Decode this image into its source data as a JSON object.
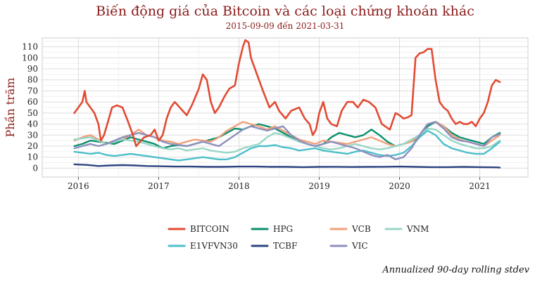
{
  "chart_data": {
    "type": "line",
    "title": "Biến động giá của Bitcoin và các loại chứng khoán khác",
    "subtitle": "2015-09-09 đến 2021-03-31",
    "ylabel": "Phần trăm",
    "caption": "Annualized 90-day rolling stdev",
    "ylim": [
      -8,
      118
    ],
    "yticks": [
      0,
      10,
      20,
      30,
      40,
      50,
      60,
      70,
      80,
      90,
      100,
      110
    ],
    "xlim": [
      2015.55,
      2021.6
    ],
    "xticks": [
      {
        "value": 2016,
        "label": "2016"
      },
      {
        "value": 2017,
        "label": "2017"
      },
      {
        "value": 2018,
        "label": "2018"
      },
      {
        "value": 2019,
        "label": "2019"
      },
      {
        "value": 2020,
        "label": "2020"
      },
      {
        "value": 2021,
        "label": "2021"
      }
    ],
    "grid": true,
    "legend_position": "bottom",
    "series": [
      {
        "name": "BITCOIN",
        "color": "#e24a33",
        "x": [
          2015.95,
          2016.0,
          2016.05,
          2016.08,
          2016.1,
          2016.15,
          2016.2,
          2016.25,
          2016.28,
          2016.32,
          2016.38,
          2016.42,
          2016.48,
          2016.55,
          2016.62,
          2016.68,
          2016.72,
          2016.78,
          2016.82,
          2016.9,
          2016.95,
          2017.0,
          2017.05,
          2017.1,
          2017.15,
          2017.2,
          2017.3,
          2017.35,
          2017.42,
          2017.5,
          2017.55,
          2017.6,
          2017.65,
          2017.7,
          2017.75,
          2017.82,
          2017.88,
          2017.95,
          2018.0,
          2018.05,
          2018.08,
          2018.12,
          2018.15,
          2018.2,
          2018.25,
          2018.3,
          2018.38,
          2018.45,
          2018.5,
          2018.58,
          2018.65,
          2018.75,
          2018.82,
          2018.88,
          2018.92,
          2018.96,
          2019.0,
          2019.05,
          2019.1,
          2019.15,
          2019.22,
          2019.28,
          2019.35,
          2019.42,
          2019.48,
          2019.55,
          2019.62,
          2019.7,
          2019.78,
          2019.82,
          2019.88,
          2019.95,
          2020.0,
          2020.05,
          2020.1,
          2020.15,
          2020.2,
          2020.25,
          2020.3,
          2020.35,
          2020.4,
          2020.45,
          2020.5,
          2020.55,
          2020.6,
          2020.65,
          2020.7,
          2020.75,
          2020.8,
          2020.85,
          2020.9,
          2020.95,
          2021.0,
          2021.05,
          2021.1,
          2021.15,
          2021.2,
          2021.25
        ],
        "y": [
          50,
          55,
          60,
          70,
          60,
          55,
          50,
          40,
          25,
          30,
          45,
          55,
          57,
          55,
          42,
          30,
          20,
          25,
          28,
          30,
          35,
          25,
          30,
          45,
          55,
          60,
          52,
          48,
          58,
          72,
          85,
          80,
          60,
          50,
          55,
          65,
          72,
          75,
          95,
          110,
          116,
          114,
          100,
          90,
          80,
          70,
          55,
          60,
          52,
          45,
          52,
          55,
          45,
          40,
          30,
          35,
          50,
          60,
          45,
          40,
          38,
          52,
          60,
          60,
          55,
          62,
          60,
          55,
          40,
          38,
          35,
          50,
          48,
          45,
          46,
          48,
          100,
          104,
          105,
          108,
          108,
          80,
          60,
          55,
          52,
          45,
          40,
          42,
          40,
          40,
          42,
          38,
          45,
          50,
          60,
          75,
          80,
          78
        ]
      },
      {
        "name": "HPG",
        "color": "#0b8f6e",
        "x": [
          2015.95,
          2016.05,
          2016.15,
          2016.25,
          2016.35,
          2016.45,
          2016.55,
          2016.65,
          2016.75,
          2016.85,
          2016.95,
          2017.05,
          2017.15,
          2017.25,
          2017.35,
          2017.45,
          2017.55,
          2017.65,
          2017.75,
          2017.85,
          2017.95,
          2018.05,
          2018.15,
          2018.25,
          2018.35,
          2018.45,
          2018.55,
          2018.65,
          2018.75,
          2018.85,
          2018.95,
          2019.05,
          2019.15,
          2019.25,
          2019.35,
          2019.45,
          2019.55,
          2019.65,
          2019.75,
          2019.85,
          2019.95,
          2020.05,
          2020.15,
          2020.25,
          2020.35,
          2020.45,
          2020.55,
          2020.65,
          2020.75,
          2020.85,
          2020.95,
          2021.05,
          2021.15,
          2021.25
        ],
        "y": [
          20,
          22,
          25,
          24,
          23,
          22,
          25,
          28,
          26,
          24,
          22,
          18,
          20,
          21,
          20,
          22,
          24,
          26,
          28,
          32,
          36,
          35,
          38,
          40,
          38,
          36,
          32,
          28,
          24,
          22,
          20,
          22,
          28,
          32,
          30,
          28,
          30,
          35,
          30,
          24,
          20,
          22,
          24,
          28,
          38,
          42,
          38,
          32,
          28,
          26,
          24,
          22,
          28,
          32
        ]
      },
      {
        "name": "VCB",
        "color": "#f2a07b",
        "x": [
          2015.95,
          2016.05,
          2016.15,
          2016.25,
          2016.35,
          2016.45,
          2016.55,
          2016.65,
          2016.75,
          2016.85,
          2016.95,
          2017.05,
          2017.15,
          2017.25,
          2017.35,
          2017.45,
          2017.55,
          2017.65,
          2017.75,
          2017.85,
          2017.95,
          2018.05,
          2018.15,
          2018.25,
          2018.35,
          2018.45,
          2018.55,
          2018.65,
          2018.75,
          2018.85,
          2018.95,
          2019.05,
          2019.15,
          2019.25,
          2019.35,
          2019.45,
          2019.55,
          2019.65,
          2019.75,
          2019.85,
          2019.95,
          2020.05,
          2020.15,
          2020.25,
          2020.35,
          2020.45,
          2020.55,
          2020.65,
          2020.75,
          2020.85,
          2020.95,
          2021.05,
          2021.15,
          2021.25
        ],
        "y": [
          25,
          28,
          30,
          26,
          22,
          24,
          26,
          30,
          35,
          30,
          28,
          25,
          24,
          22,
          24,
          26,
          25,
          24,
          28,
          34,
          38,
          42,
          40,
          38,
          35,
          38,
          34,
          30,
          26,
          24,
          22,
          25,
          24,
          23,
          22,
          24,
          26,
          28,
          25,
          22,
          20,
          22,
          24,
          30,
          40,
          42,
          38,
          30,
          26,
          24,
          22,
          20,
          25,
          30
        ]
      },
      {
        "name": "VNM",
        "color": "#98d6c6",
        "x": [
          2015.95,
          2016.05,
          2016.15,
          2016.25,
          2016.35,
          2016.45,
          2016.55,
          2016.65,
          2016.75,
          2016.85,
          2016.95,
          2017.05,
          2017.15,
          2017.25,
          2017.35,
          2017.45,
          2017.55,
          2017.65,
          2017.75,
          2017.85,
          2017.95,
          2018.05,
          2018.15,
          2018.25,
          2018.35,
          2018.45,
          2018.55,
          2018.65,
          2018.75,
          2018.85,
          2018.95,
          2019.05,
          2019.15,
          2019.25,
          2019.35,
          2019.45,
          2019.55,
          2019.65,
          2019.75,
          2019.85,
          2019.95,
          2020.05,
          2020.15,
          2020.25,
          2020.35,
          2020.45,
          2020.55,
          2020.65,
          2020.75,
          2020.85,
          2020.95,
          2021.05,
          2021.15,
          2021.25
        ],
        "y": [
          26,
          27,
          28,
          25,
          22,
          24,
          26,
          25,
          24,
          22,
          20,
          18,
          17,
          18,
          16,
          17,
          18,
          16,
          15,
          14,
          15,
          18,
          20,
          22,
          28,
          32,
          30,
          27,
          24,
          22,
          20,
          18,
          17,
          18,
          20,
          22,
          20,
          18,
          17,
          18,
          20,
          22,
          26,
          30,
          36,
          35,
          30,
          25,
          22,
          20,
          18,
          18,
          20,
          25
        ]
      },
      {
        "name": "E1VFVN30",
        "color": "#4bbfc9",
        "x": [
          2015.95,
          2016.05,
          2016.15,
          2016.25,
          2016.35,
          2016.45,
          2016.55,
          2016.65,
          2016.75,
          2016.85,
          2016.95,
          2017.05,
          2017.15,
          2017.25,
          2017.35,
          2017.45,
          2017.55,
          2017.65,
          2017.75,
          2017.85,
          2017.95,
          2018.05,
          2018.15,
          2018.25,
          2018.35,
          2018.45,
          2018.55,
          2018.65,
          2018.75,
          2018.85,
          2018.95,
          2019.05,
          2019.15,
          2019.25,
          2019.35,
          2019.45,
          2019.55,
          2019.65,
          2019.75,
          2019.85,
          2019.95,
          2020.05,
          2020.15,
          2020.25,
          2020.35,
          2020.45,
          2020.55,
          2020.65,
          2020.75,
          2020.85,
          2020.95,
          2021.05,
          2021.15,
          2021.25
        ],
        "y": [
          15,
          14,
          13,
          14,
          12,
          11,
          12,
          13,
          12,
          11,
          10,
          9,
          8,
          7,
          8,
          9,
          10,
          9,
          8,
          8,
          10,
          14,
          18,
          20,
          20,
          21,
          19,
          18,
          16,
          17,
          18,
          16,
          15,
          14,
          13,
          15,
          16,
          14,
          12,
          11,
          12,
          14,
          20,
          28,
          34,
          30,
          22,
          18,
          16,
          14,
          13,
          13,
          18,
          24
        ]
      },
      {
        "name": "TCBF",
        "color": "#2e4482",
        "x": [
          2015.95,
          2016.1,
          2016.25,
          2016.4,
          2016.55,
          2016.7,
          2016.85,
          2017.0,
          2017.2,
          2017.4,
          2017.6,
          2017.8,
          2018.0,
          2018.2,
          2018.4,
          2018.6,
          2018.8,
          2019.0,
          2019.2,
          2019.4,
          2019.6,
          2019.8,
          2020.0,
          2020.2,
          2020.4,
          2020.6,
          2020.8,
          2021.0,
          2021.2,
          2021.25
        ],
        "y": [
          3.5,
          3,
          2,
          2.5,
          2.8,
          2.5,
          2,
          1.8,
          1.5,
          1.5,
          1.2,
          1.2,
          1.5,
          1.5,
          1.2,
          1.2,
          1,
          1.2,
          1.3,
          1.1,
          1.2,
          1.3,
          1.5,
          1.2,
          1,
          1,
          1.2,
          1,
          0.8,
          0.5
        ]
      },
      {
        "name": "VIC",
        "color": "#8e8fbf",
        "x": [
          2015.95,
          2016.05,
          2016.15,
          2016.25,
          2016.35,
          2016.45,
          2016.55,
          2016.65,
          2016.75,
          2016.85,
          2016.95,
          2017.05,
          2017.15,
          2017.25,
          2017.35,
          2017.45,
          2017.55,
          2017.65,
          2017.75,
          2017.85,
          2017.95,
          2018.05,
          2018.15,
          2018.25,
          2018.35,
          2018.45,
          2018.55,
          2018.65,
          2018.75,
          2018.85,
          2018.95,
          2019.05,
          2019.15,
          2019.25,
          2019.35,
          2019.45,
          2019.55,
          2019.65,
          2019.75,
          2019.85,
          2019.95,
          2020.05,
          2020.15,
          2020.25,
          2020.35,
          2020.45,
          2020.55,
          2020.65,
          2020.75,
          2020.85,
          2020.95,
          2021.05,
          2021.15,
          2021.25
        ],
        "y": [
          18,
          20,
          22,
          20,
          22,
          25,
          28,
          30,
          32,
          30,
          28,
          24,
          22,
          21,
          20,
          22,
          24,
          22,
          20,
          25,
          30,
          35,
          38,
          36,
          34,
          36,
          38,
          30,
          25,
          22,
          20,
          22,
          24,
          22,
          20,
          18,
          15,
          12,
          10,
          12,
          8,
          10,
          18,
          30,
          40,
          42,
          36,
          28,
          25,
          24,
          22,
          20,
          28,
          31
        ]
      }
    ]
  }
}
